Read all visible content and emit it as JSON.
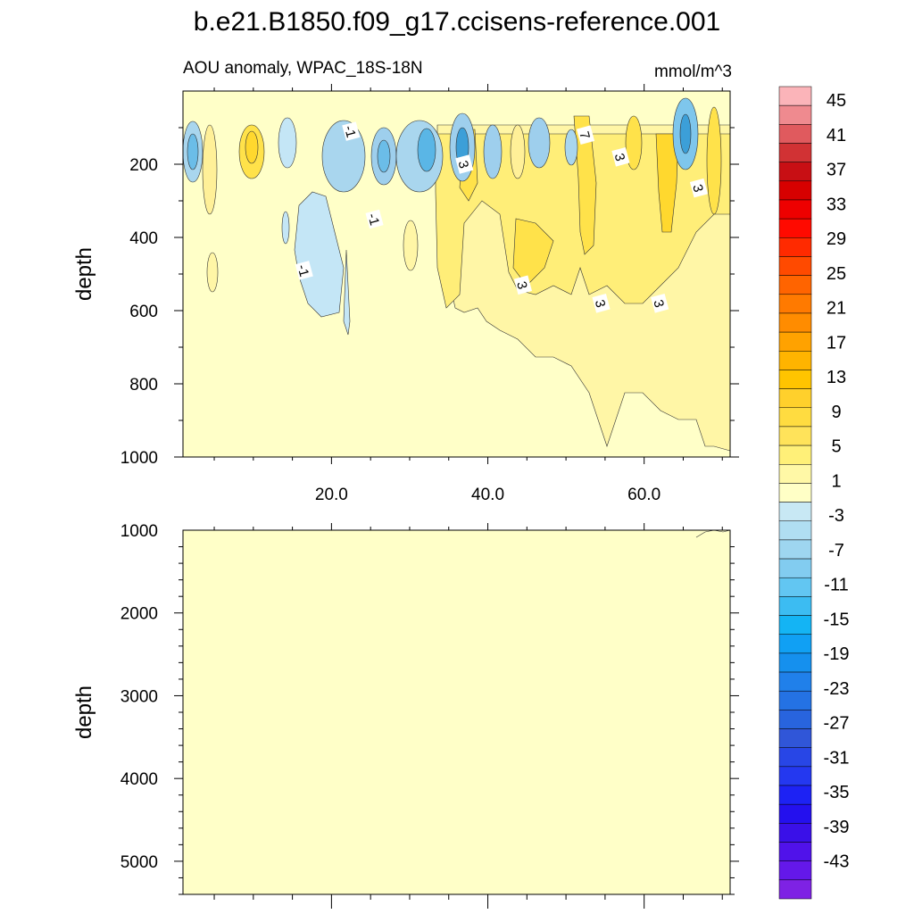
{
  "title": "b.e21.B1850.f09_g17.ccisens-reference.001",
  "subtitle_left": "AOU anomaly, WPAC_18S-18N",
  "subtitle_right": "mmol/m^3",
  "chart_data": [
    {
      "type": "heatmap",
      "name": "upper-panel",
      "ylabel": "depth",
      "xlabel": "",
      "xlim": [
        1,
        71
      ],
      "ylim": [
        1000,
        0
      ],
      "x_ticks": [
        20,
        40,
        60
      ],
      "x_tick_labels": [
        "20.0",
        "40.0",
        "60.0"
      ],
      "y_ticks": [
        200,
        400,
        600,
        800,
        1000
      ],
      "y_tick_labels": [
        "200",
        "400",
        "600",
        "800",
        "1000"
      ],
      "contour_labels": [
        {
          "text": "-1",
          "x": 22.5,
          "y": 110
        },
        {
          "text": "-1",
          "x": 25.5,
          "y": 350
        },
        {
          "text": "-1",
          "x": 16.5,
          "y": 490
        },
        {
          "text": "3",
          "x": 37.0,
          "y": 200
        },
        {
          "text": "7",
          "x": 52.5,
          "y": 120
        },
        {
          "text": "3",
          "x": 57.0,
          "y": 180
        },
        {
          "text": "3",
          "x": 67.0,
          "y": 265
        },
        {
          "text": "3",
          "x": 44.5,
          "y": 530
        },
        {
          "text": "3",
          "x": 54.5,
          "y": 580
        },
        {
          "text": "3",
          "x": 62.0,
          "y": 580
        }
      ]
    },
    {
      "type": "heatmap",
      "name": "lower-panel",
      "ylabel": "depth",
      "xlim": [
        1,
        71
      ],
      "ylim": [
        5400,
        1000
      ],
      "y_ticks": [
        1000,
        2000,
        3000,
        4000,
        5000
      ],
      "y_tick_labels": [
        "1000",
        "2000",
        "3000",
        "4000",
        "5000"
      ]
    }
  ],
  "colorbar": {
    "labels": [
      "45",
      "41",
      "37",
      "33",
      "29",
      "25",
      "21",
      "17",
      "13",
      "9",
      "5",
      "1",
      "-3",
      "-7",
      "-11",
      "-15",
      "-19",
      "-23",
      "-27",
      "-31",
      "-35",
      "-39",
      "-43"
    ],
    "colors": [
      "#fbb4b9",
      "#ef8a8f",
      "#e05a5e",
      "#d13234",
      "#c80f14",
      "#d70000",
      "#ee0000",
      "#ff0a00",
      "#ff2a00",
      "#ff4a00",
      "#ff6400",
      "#ff7a00",
      "#ff8c00",
      "#ffa200",
      "#ffb400",
      "#ffc400",
      "#ffd02c",
      "#ffdc40",
      "#ffe35a",
      "#fff078",
      "#fff8a6",
      "#ffffc6",
      "#c8e8f4",
      "#b0def2",
      "#9ed6f0",
      "#82ccf0",
      "#62c6f2",
      "#3cbcf2",
      "#14b4f4",
      "#10a0f4",
      "#1590ee",
      "#2080ea",
      "#2472e4",
      "#2864de",
      "#3056d8",
      "#2846e6",
      "#2438f0",
      "#1d22f4",
      "#2410ee",
      "#3a10e8",
      "#5012ea",
      "#6418ea",
      "#7e22e4"
    ]
  }
}
